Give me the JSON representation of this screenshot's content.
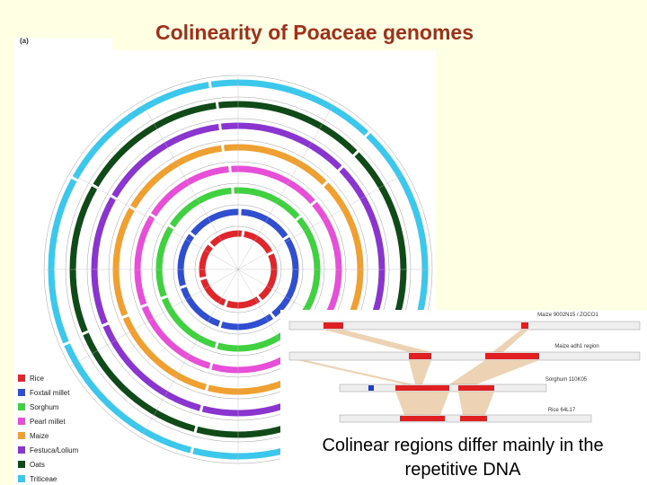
{
  "title": "Colinearity of Poaceae genomes",
  "figure": {
    "panel_label": "(a)",
    "legend": [
      {
        "label": "Rice",
        "color": "#e0262b"
      },
      {
        "label": "Foxtail millet",
        "color": "#2f4fd0"
      },
      {
        "label": "Sorghum",
        "color": "#3fd13f"
      },
      {
        "label": "Pearl millet",
        "color": "#e84fd8"
      },
      {
        "label": "Maize",
        "color": "#f0a030"
      },
      {
        "label": "Festuca/Lolium",
        "color": "#8a35d0"
      },
      {
        "label": "Oats",
        "color": "#0f4a18"
      },
      {
        "label": "Triticeae",
        "color": "#3cc8ec"
      }
    ]
  },
  "inset": {
    "labels": [
      "Maize 9002N15 / ZOCO1",
      "Maize adh1 region",
      "Sorghum 110K05",
      "Rice 64L17"
    ]
  },
  "caption": [
    "Colinear regions differ mainly in the",
    "repetitive DNA"
  ]
}
